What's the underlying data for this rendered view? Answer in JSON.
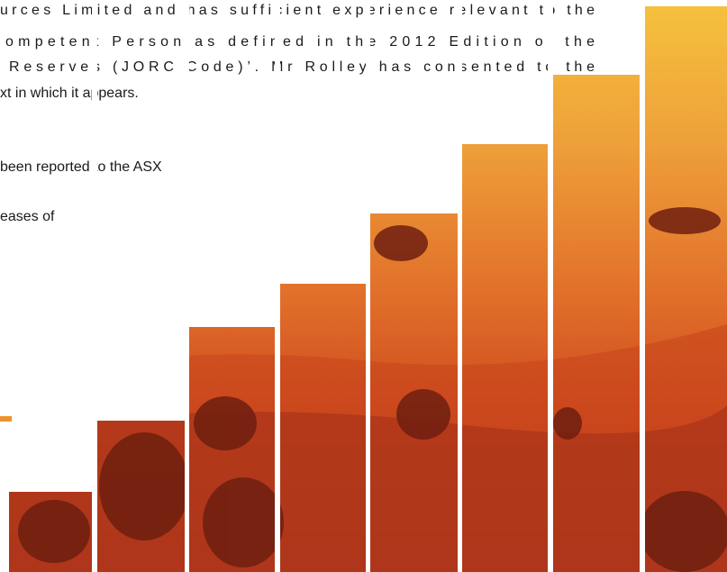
{
  "paragraph": {
    "lines": [
      "urces Limited and has sufficient experience relevant to the",
      "ompetent Person as defined in the 2012 Edition of the",
      "Reserves (JORC Code)’. Mr Rolley has consented to the",
      "xt in which it appears."
    ]
  },
  "notes": {
    "lines": [
      "been reported to the ASX",
      "eases of"
    ]
  }
}
